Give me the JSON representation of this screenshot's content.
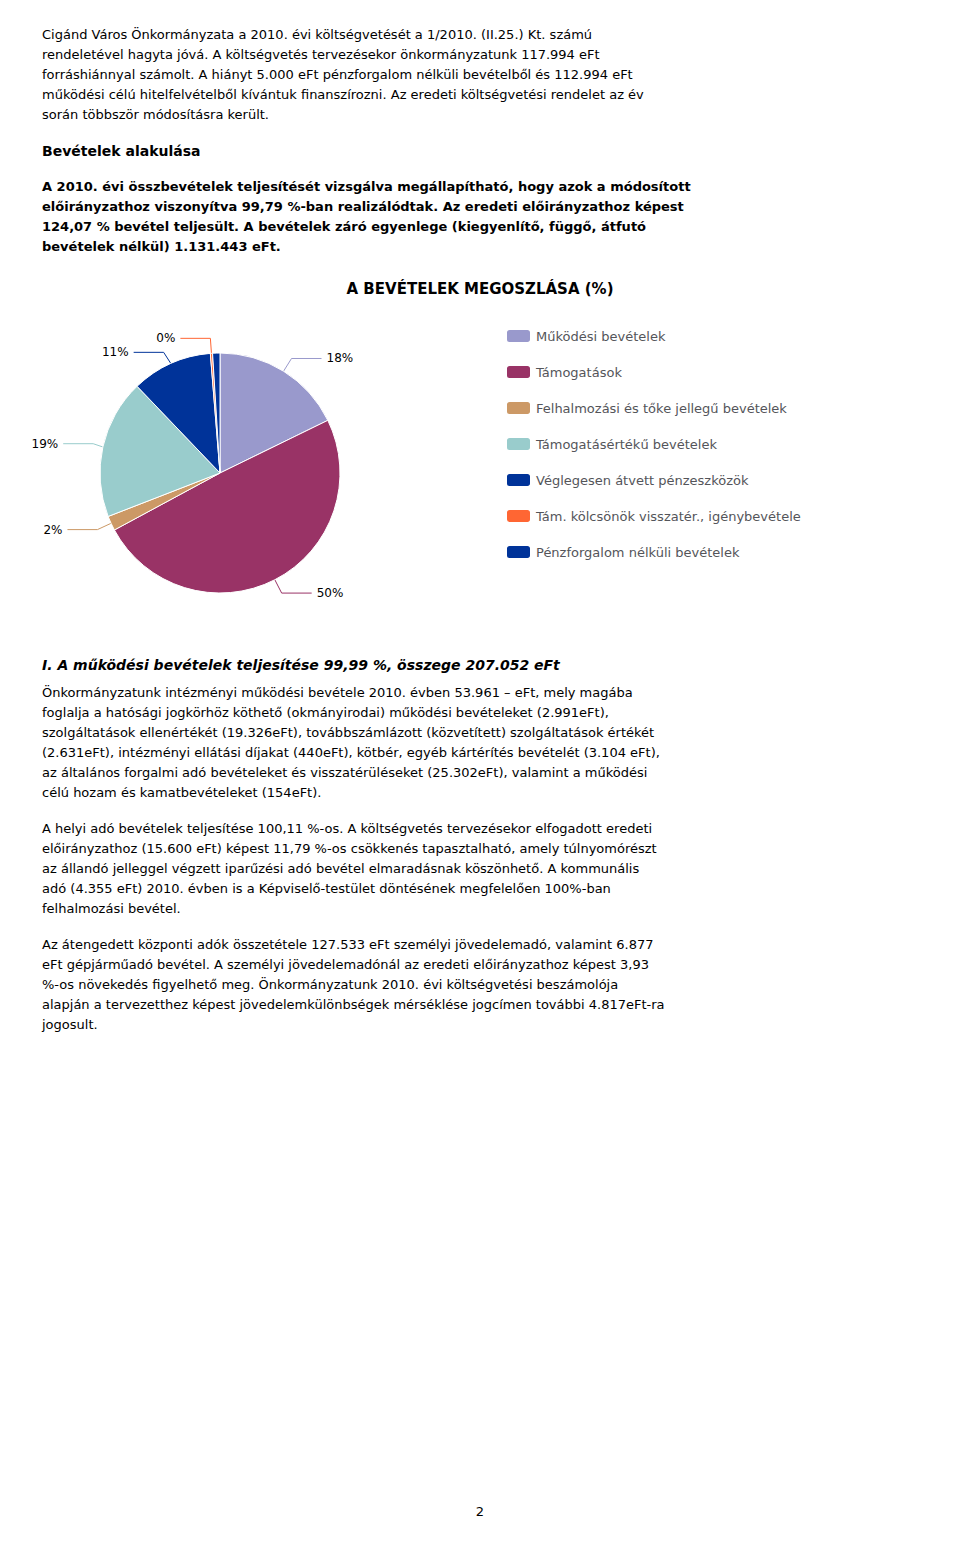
{
  "chart_data": {
    "type": "pie",
    "title": "A BEVÉTELEK MEGOSZLÁSA (%)",
    "categories": [
      "Működési bevételek",
      "Támogatások",
      "Felhalmozási és tőke jellegű bevételek",
      "Támogatásértékű bevételek",
      "Véglegesen átvett pénzeszközök",
      "Tám. kölcsönök visszatér., igénybevétele",
      "Pénzforgalom nélküli bevételek"
    ],
    "values": [
      18,
      50,
      2,
      19,
      11,
      0.3,
      1
    ],
    "value_labels": [
      "18%",
      "50%",
      "2%",
      "19%",
      "11%",
      "0%",
      null
    ],
    "colors": [
      "#9999CC",
      "#993366",
      "#CC9966",
      "#99CCCC",
      "#003399",
      "#FF6633",
      "#003399"
    ],
    "data_labels": true,
    "legend": "right",
    "annotations": [
      [
        "Cigánd Város Önkormányzata a 2010. évi költségvetését a 1/2010. (II.25.) Kt. számú",
        "rendeletével hagyta jóvá. A költségvetés tervezésekor önkormányzatunk 117.994 eFt",
        "forráshiánnyal számolt. A hiányt 5.000 eFt pénzforgalom nélküli bevételből és 112.994 eFt",
        "működési célú hitelfelvételből kívántuk finanszírozni. Az eredeti költségvetési rendelet az év",
        "során többször módosításra került."
      ],
      [
        "Bevételek alakulása"
      ],
      [
        "A 2010. évi összbevételek teljesítését vizsgálva megállapítható, hogy azok a módosított",
        "előirányzathoz viszonyítva 99,79 %-ban realizálódtak. Az eredeti előirányzathoz képest",
        "124,07 % bevétel teljesült. A bevételek záró egyenlege (kiegyenlítő, függő, átfutó",
        "bevételek nélkül) 1.131.443 eFt."
      ],
      [
        "I. A működési bevételek teljesítése 99,99 %, összege 207.052 eFt"
      ],
      [
        "Önkormányzatunk intézményi működési bevétele 2010. évben 53.961 – eFt, mely magába",
        "foglalja a hatósági jogkörhöz köthető (okmányirodai) működési bevételeket (2.991eFt),",
        "szolgáltatások ellenértékét (19.326eFt), továbbszámlázott (közvetített) szolgáltatások értékét",
        "(2.631eFt), intézményi ellátási díjakat (440eFt), kötbér, egyéb kártérítés bevételét (3.104 eFt),",
        "az általános forgalmi adó bevételeket és visszatérüléseket (25.302eFt), valamint a működési",
        "célú hozam és kamatbevételeket (154eFt)."
      ],
      [
        "A helyi adó bevételek teljesítése 100,11 %-os. A költségvetés tervezésekor elfogadott eredeti",
        "előirányzathoz (15.600 eFt) képest 11,79 %-os csökkenés tapasztalható, amely túlnyomórészt",
        "az állandó jelleggel végzett iparűzési adó bevétel elmaradásnak köszönhető. A kommunális",
        "adó (4.355 eFt) 2010. évben is a Képviselő-testület döntésének megfelelően 100%-ban",
        "felhalmozási bevétel."
      ],
      [
        "Az átengedett központi adók összetétele 127.533 eFt személyi jövedelemadó, valamint 6.877",
        "eFt gépjárműadó bevétel. A személyi jövedelemadónál az eredeti előirányzathoz képest 3,93",
        "%-os növekedés figyelhető meg. Önkormányzatunk 2010. évi költségvetési beszámolója",
        "alapján a tervezetthez képest jövedelemkülönbségek mérséklése jogcímen további 4.817eFt-ra",
        "jogosult."
      ],
      [
        "2"
      ]
    ]
  }
}
